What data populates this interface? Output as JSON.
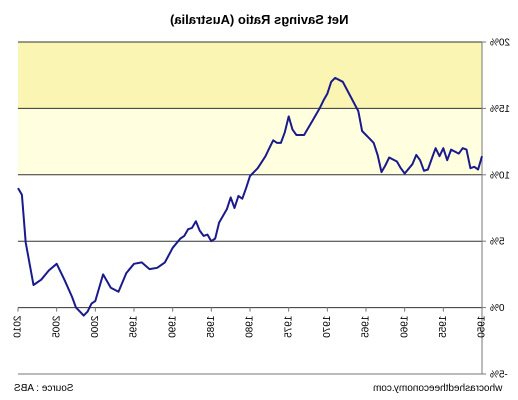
{
  "chart_data": {
    "type": "line",
    "title": "Net Savings Ratio (Australia)",
    "xlabel": "",
    "ylabel": "",
    "x_axis_reversed": true,
    "text_mirrored": true,
    "xlim": [
      1950,
      2010
    ],
    "ylim": [
      -5,
      20
    ],
    "y_ticks": [
      -5,
      0,
      5,
      10,
      15,
      20
    ],
    "y_tick_labels": [
      "-5%",
      "0%",
      "5%",
      "10%",
      "15%",
      "20%"
    ],
    "x_ticks": [
      1950,
      1955,
      1960,
      1965,
      1970,
      1975,
      1980,
      1985,
      1990,
      1995,
      2000,
      2005,
      2010
    ],
    "x_tick_labels": [
      "1950",
      "1955",
      "1960",
      "1965",
      "1970",
      "1975",
      "1980",
      "1985",
      "1990",
      "1995",
      "2000",
      "2005",
      "2010"
    ],
    "grid": "horizontal",
    "background_bands": [
      {
        "from": 10,
        "to": 15,
        "color": "#ffffe0"
      },
      {
        "from": 15,
        "to": 20,
        "color": "#fbf5b4"
      }
    ],
    "line_color": "#1a1a8c",
    "series": [
      {
        "name": "",
        "x": [
          1950,
          1950.5,
          1951,
          1951.5,
          1952,
          1952.5,
          1953,
          1954,
          1954.5,
          1955,
          1955.5,
          1956,
          1956.5,
          1957,
          1957.5,
          1958,
          1958.5,
          1959,
          1960,
          1960.5,
          1961,
          1962,
          1962.5,
          1963,
          1963.5,
          1964,
          1964.5,
          1965,
          1965.5,
          1966,
          1967,
          1968,
          1969,
          1969.5,
          1970,
          1970.5,
          1971,
          1972,
          1973,
          1974,
          1974.5,
          1975,
          1975.5,
          1976,
          1976.5,
          1977,
          1977.5,
          1978,
          1979,
          1980,
          1980.5,
          1981,
          1981.5,
          1982,
          1982.5,
          1983,
          1984,
          1984.5,
          1985,
          1985.5,
          1986,
          1986.5,
          1987,
          1987.5,
          1988,
          1988.5,
          1989,
          1990,
          1991,
          1992,
          1993,
          1994,
          1995,
          1996,
          1997,
          1998,
          1999,
          2000,
          2000.5,
          2001,
          2001.5,
          2002,
          2002.5,
          2003,
          2004,
          2005,
          2006,
          2007,
          2008,
          2009,
          2009.5,
          2010
        ],
        "values": [
          11.4,
          10.4,
          10.6,
          10.5,
          11.9,
          12.0,
          11.6,
          11.9,
          11.1,
          12.0,
          11.4,
          12.0,
          11.2,
          10.4,
          10.3,
          11.1,
          11.5,
          10.8,
          10.1,
          10.5,
          11.0,
          11.3,
          10.7,
          10.2,
          11.5,
          12.4,
          12.7,
          13.0,
          13.3,
          14.8,
          15.9,
          17.0,
          17.3,
          17.0,
          16.1,
          15.6,
          15.0,
          14.0,
          13.0,
          13.0,
          13.4,
          14.4,
          13.2,
          12.4,
          12.4,
          12.6,
          12.0,
          11.4,
          10.5,
          9.9,
          9.0,
          8.2,
          8.4,
          7.5,
          8.3,
          7.4,
          6.4,
          5.2,
          5.0,
          5.5,
          5.4,
          5.8,
          6.5,
          6.0,
          5.9,
          5.4,
          5.2,
          4.5,
          3.4,
          3.0,
          2.9,
          3.4,
          3.3,
          2.6,
          1.2,
          1.5,
          2.5,
          0.5,
          0.3,
          -0.3,
          -0.6,
          -0.3,
          0.0,
          0.8,
          2.1,
          3.3,
          2.8,
          2.1,
          1.7,
          4.9,
          8.5,
          9.0
        ]
      }
    ]
  },
  "footer": {
    "source": "Source : ABS",
    "website": "whocrashedtheeconomy.com"
  }
}
